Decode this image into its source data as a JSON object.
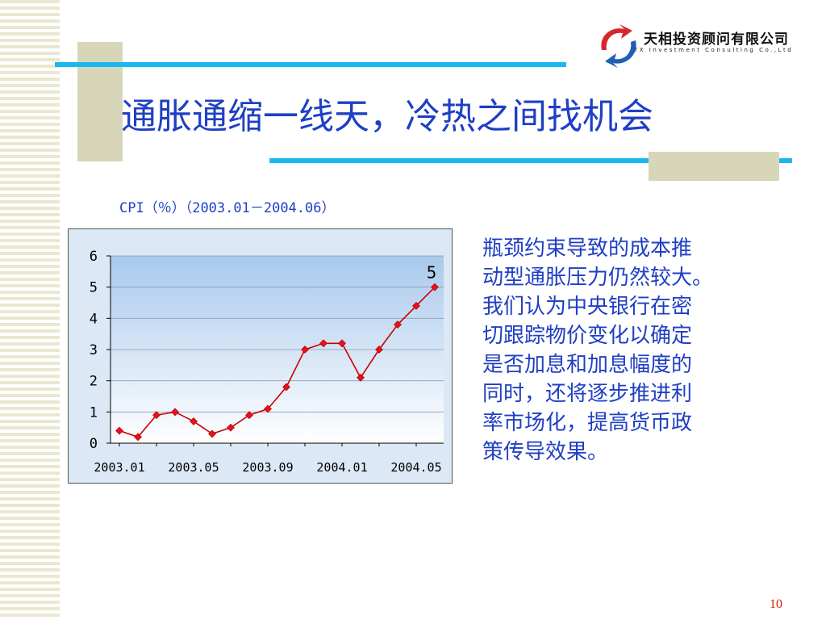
{
  "slide": {
    "title": "通胀通缩一线天，冷热之间找机会",
    "page_number": "10",
    "logo": {
      "name_cn": "天相投资顾问有限公司",
      "name_en": "TX Investment Consulting Co.,Ltd",
      "colors": [
        "#d7262f",
        "#1f5fb4"
      ]
    },
    "chart_caption": "CPI（％）（2003.01－2004.06）",
    "body_lines": [
      "瓶颈约束导致的成本推",
      "动型通胀压力仍然较大。",
      "我们认为中央银行在密",
      "切跟踪物价变化以确定",
      "是否加息和加息幅度的",
      "同时，还将逐步推进利",
      "率市场化，提高货币政",
      "策传导效果。"
    ]
  },
  "chart_data": {
    "type": "line",
    "x": [
      "2003.01",
      "2003.02",
      "2003.03",
      "2003.04",
      "2003.05",
      "2003.06",
      "2003.07",
      "2003.08",
      "2003.09",
      "2003.10",
      "2003.11",
      "2003.12",
      "2004.01",
      "2004.02",
      "2004.03",
      "2004.04",
      "2004.05",
      "2004.06"
    ],
    "series": [
      {
        "values": [
          0.4,
          0.2,
          0.9,
          1.0,
          0.7,
          0.3,
          0.5,
          0.9,
          1.1,
          1.8,
          3.0,
          3.2,
          3.2,
          2.1,
          3.0,
          3.8,
          4.4,
          5.0
        ]
      }
    ],
    "x_tick_labels": [
      "2003.01",
      "2003.05",
      "2003.09",
      "2004.01",
      "2004.05"
    ],
    "y_ticks": [
      "0",
      "1",
      "2",
      "3",
      "4",
      "5",
      "6"
    ],
    "ylim": [
      0,
      6
    ],
    "data_label": "5",
    "grid": true,
    "colors": {
      "line": "#cc0000",
      "marker": "#e8101a",
      "plot_bg_top": "#a9c9ec",
      "plot_bg_bottom": "#ffffff",
      "frame_bg": "#dce8f6"
    }
  }
}
